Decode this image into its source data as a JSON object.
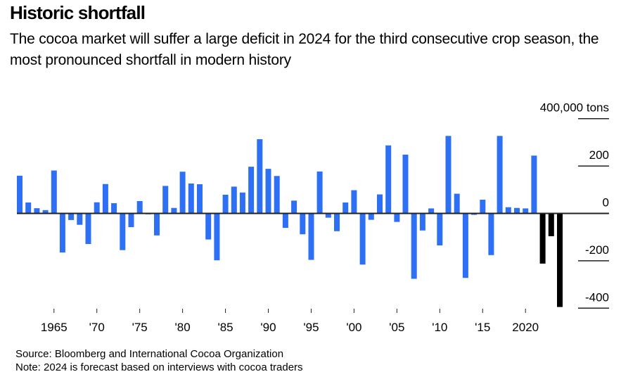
{
  "header": {
    "title": "Historic shortfall",
    "subtitle": "The cocoa market will suffer a large deficit in 2024 for the third consecutive crop season, the most pronounced shortfall in modern history"
  },
  "footer": {
    "source": "Source: Bloomberg and International Cocoa Organization",
    "note": "Note: 2024 is forecast based on interviews with cocoa traders"
  },
  "colors": {
    "actual": "#2d6ff5",
    "forecast": "#000000",
    "axis": "#222222"
  },
  "chart_data": {
    "type": "bar",
    "title": "Historic shortfall",
    "xlabel": "",
    "ylabel": "tons",
    "unit_label": "400,000 tons",
    "ylim": [
      -400,
      400
    ],
    "y_units": "thousand tons",
    "yticks": [
      {
        "value": 400,
        "label": "400,000 tons"
      },
      {
        "value": 200,
        "label": "200"
      },
      {
        "value": 0,
        "label": "0"
      },
      {
        "value": -200,
        "label": "-200"
      },
      {
        "value": -400,
        "label": "-400"
      }
    ],
    "xticks": [
      {
        "year": 1965,
        "label": "1965"
      },
      {
        "year": 1970,
        "label": "'70"
      },
      {
        "year": 1975,
        "label": "'75"
      },
      {
        "year": 1980,
        "label": "'80"
      },
      {
        "year": 1985,
        "label": "'85"
      },
      {
        "year": 1990,
        "label": "'90"
      },
      {
        "year": 1995,
        "label": "'95"
      },
      {
        "year": 2000,
        "label": "'00"
      },
      {
        "year": 2005,
        "label": "'05"
      },
      {
        "year": 2010,
        "label": "'10"
      },
      {
        "year": 2015,
        "label": "'15"
      },
      {
        "year": 2020,
        "label": "2020"
      }
    ],
    "grid": false,
    "legend": "none",
    "x": [
      1961,
      1962,
      1963,
      1964,
      1965,
      1966,
      1967,
      1968,
      1969,
      1970,
      1971,
      1972,
      1973,
      1974,
      1975,
      1976,
      1977,
      1978,
      1979,
      1980,
      1981,
      1982,
      1983,
      1984,
      1985,
      1986,
      1987,
      1988,
      1989,
      1990,
      1991,
      1992,
      1993,
      1994,
      1995,
      1996,
      1997,
      1998,
      1999,
      2000,
      2001,
      2002,
      2003,
      2004,
      2005,
      2006,
      2007,
      2008,
      2009,
      2010,
      2011,
      2012,
      2013,
      2014,
      2015,
      2016,
      2017,
      2018,
      2019,
      2020,
      2021,
      2022,
      2023,
      2024
    ],
    "values": [
      159,
      46,
      22,
      14,
      181,
      -165,
      -28,
      -48,
      -129,
      47,
      124,
      43,
      -155,
      -58,
      52,
      -4,
      -93,
      116,
      23,
      176,
      126,
      123,
      -110,
      -198,
      79,
      113,
      88,
      197,
      313,
      188,
      158,
      -61,
      54,
      -88,
      -196,
      177,
      -18,
      -75,
      46,
      98,
      -216,
      -27,
      80,
      287,
      -36,
      248,
      -276,
      -72,
      21,
      -135,
      327,
      83,
      -272,
      -6,
      58,
      -176,
      327,
      26,
      23,
      21,
      244,
      -212,
      -96,
      -395
    ],
    "highlighted": [
      2022,
      2023,
      2024
    ],
    "highlight_note": "Last three seasons (deficits) drawn in black"
  }
}
